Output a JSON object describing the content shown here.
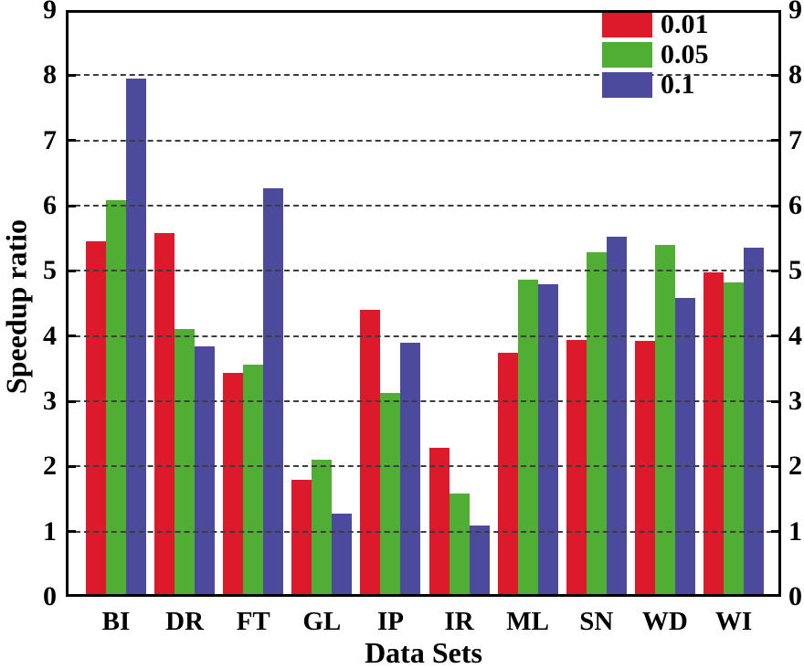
{
  "chart_data": {
    "type": "bar",
    "title": "",
    "xlabel": "Data Sets",
    "ylabel": "Speedup ratio",
    "ylim": [
      0,
      9
    ],
    "yticks": [
      0,
      1,
      2,
      3,
      4,
      5,
      6,
      7,
      8,
      9
    ],
    "grid": "horizontal dash-dot gridlines at integer values 1-8, drawn over bars",
    "axes": "full box frame, tick marks inward on left and right axes, y tick labels on both sides",
    "legend_position": "top-right inside plot, no border",
    "categories": [
      "BI",
      "DR",
      "FT",
      "GL",
      "IP",
      "IR",
      "ML",
      "SN",
      "WD",
      "WI"
    ],
    "series": [
      {
        "name": "0.01",
        "color": "#dc1a2c",
        "values": [
          5.45,
          5.58,
          3.44,
          1.8,
          4.4,
          2.29,
          3.74,
          3.94,
          3.93,
          4.98
        ]
      },
      {
        "name": "0.05",
        "color": "#4fae33",
        "values": [
          6.08,
          4.11,
          3.56,
          2.11,
          3.13,
          1.58,
          4.86,
          5.28,
          5.4,
          4.82
        ]
      },
      {
        "name": "0.1",
        "color": "#4b4a9b",
        "values": [
          7.95,
          3.84,
          6.27,
          1.28,
          3.9,
          1.1,
          4.79,
          5.53,
          4.59,
          5.35
        ]
      }
    ]
  },
  "colors": {
    "background": "#ffffff",
    "frame": "#000000",
    "grid": "#3d3d3d",
    "text": "#000000"
  }
}
